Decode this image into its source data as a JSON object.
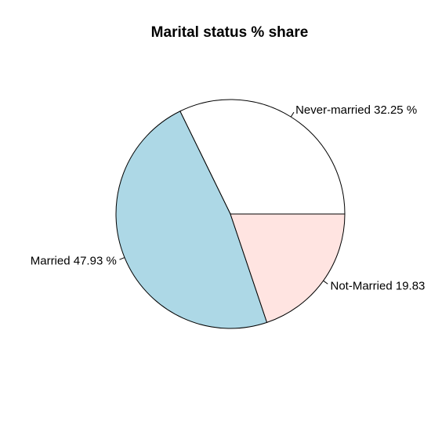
{
  "chart_data": {
    "type": "pie",
    "title": "Marital status % share",
    "slices": [
      {
        "label": "Never-married 32.25 %",
        "value": 32.25,
        "color": "#ffffff"
      },
      {
        "label": "Married 47.93 %",
        "value": 47.93,
        "color": "#add8e6"
      },
      {
        "label": "Not-Married 19.83",
        "value": 19.83,
        "color": "#ffe4e1"
      }
    ],
    "start": "3 o'clock",
    "direction": "counter-clockwise",
    "legend": "none"
  }
}
